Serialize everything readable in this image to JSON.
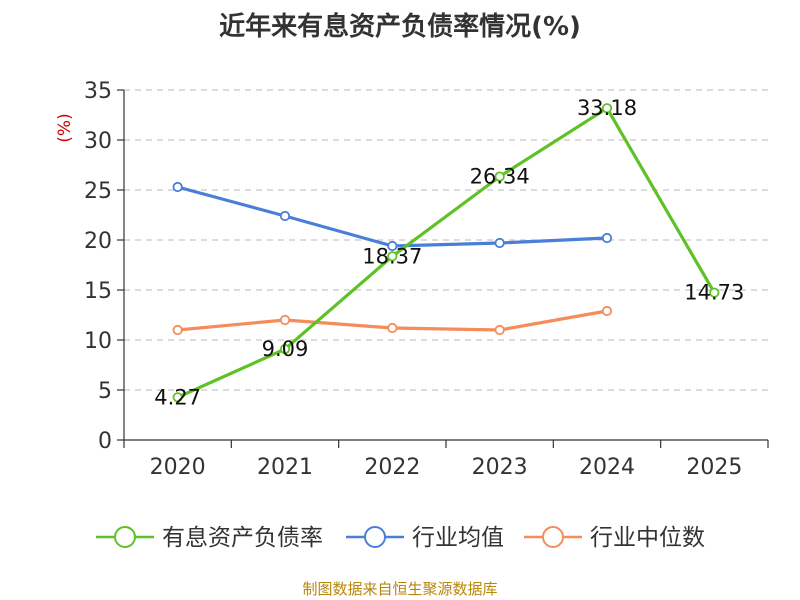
{
  "chart_data": {
    "type": "line",
    "title": "近年来有息资产负债率情况(%)",
    "ylabel": "(%)",
    "xlabel": "",
    "categories": [
      "2020",
      "2021",
      "2022",
      "2023",
      "2024",
      "2025"
    ],
    "ylim": [
      0,
      35
    ],
    "yticks": [
      0,
      5,
      10,
      15,
      20,
      25,
      30,
      35
    ],
    "grid": true,
    "legend_position": "bottom",
    "series": [
      {
        "name": "有息资产负债率",
        "color": "#5ec126",
        "values": [
          4.27,
          9.09,
          18.37,
          26.34,
          33.18,
          14.73
        ],
        "labels": [
          "4.27",
          "9.09",
          "18.37",
          "26.34",
          "33.18",
          "14.73"
        ]
      },
      {
        "name": "行业均值",
        "color": "#4a7fd9",
        "values": [
          25.3,
          22.4,
          19.4,
          19.7,
          20.2,
          null
        ]
      },
      {
        "name": "行业中位数",
        "color": "#f58c5a",
        "values": [
          11.0,
          12.0,
          11.2,
          11.0,
          12.9,
          null
        ]
      }
    ]
  },
  "footer": {
    "source": "制图数据来自恒生聚源数据库"
  }
}
